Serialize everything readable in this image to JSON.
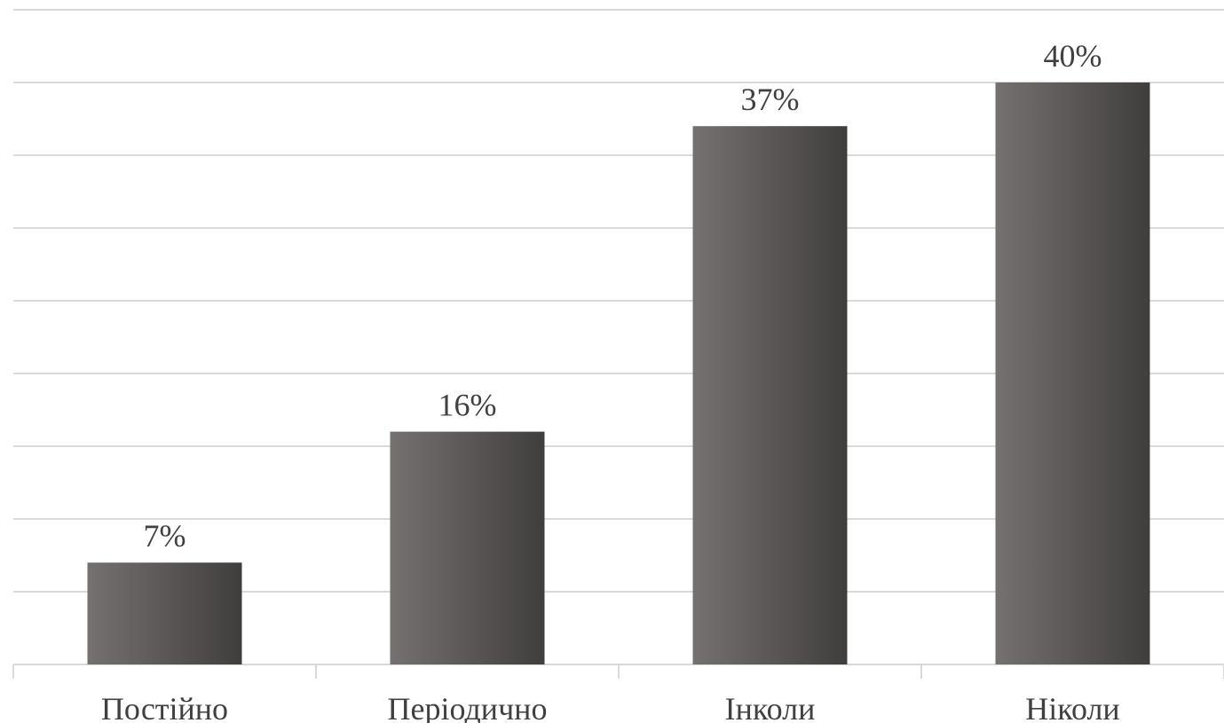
{
  "chart_data": {
    "type": "bar",
    "categories": [
      "Постійно",
      "Періодично",
      "Інколи",
      "Ніколи"
    ],
    "values": [
      7,
      16,
      37,
      40
    ],
    "data_labels": [
      "7%",
      "16%",
      "37%",
      "40%"
    ],
    "unit": "%",
    "ylim": [
      0,
      45
    ],
    "grid": true,
    "legend": "none",
    "colors": {
      "bar_light": "#757170",
      "bar_dark": "#403e3c",
      "grid": "#d9d9d9",
      "text": "#404040"
    }
  }
}
